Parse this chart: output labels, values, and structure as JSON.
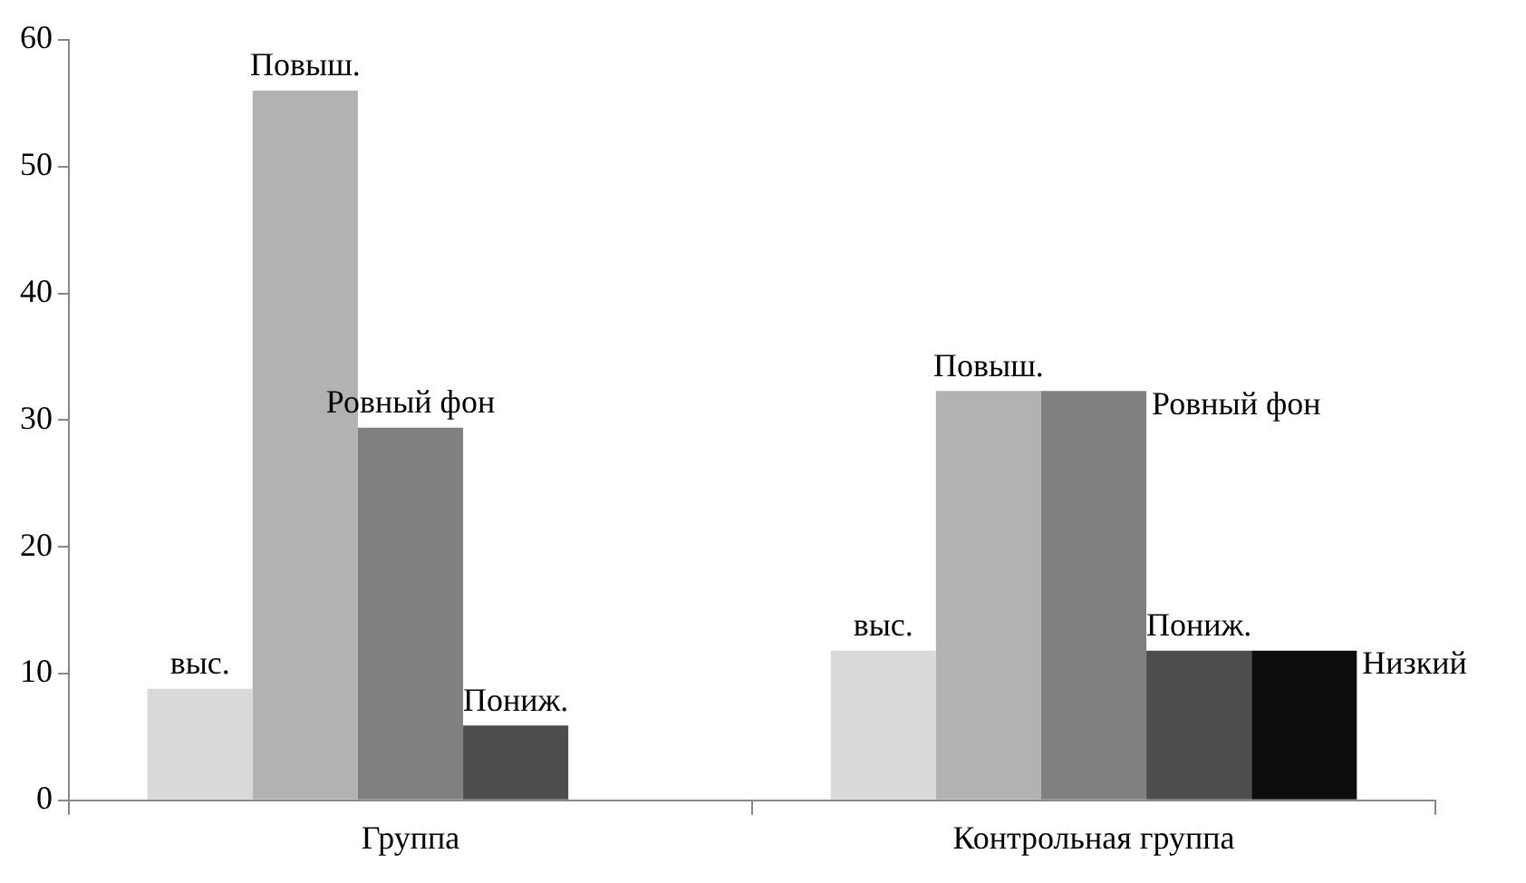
{
  "chart_data": {
    "type": "bar",
    "categories": [
      "Группа",
      "Контрольная группа"
    ],
    "series": [
      {
        "name": "выс.",
        "color": "#d9d9d9",
        "values": [
          8.8,
          11.8
        ]
      },
      {
        "name": "Повыш.",
        "color": "#b2b2b2",
        "values": [
          56,
          32.3
        ]
      },
      {
        "name": "Ровный фон",
        "color": "#808080",
        "values": [
          29.4,
          32.3
        ]
      },
      {
        "name": "Пониж.",
        "color": "#4d4d4d",
        "values": [
          5.9,
          11.8
        ]
      },
      {
        "name": "Низкий",
        "color": "#0d0d0d",
        "values": [
          null,
          11.8
        ]
      }
    ],
    "ylim": [
      0,
      60
    ],
    "yticks": [
      0,
      10,
      20,
      30,
      40,
      50,
      60
    ],
    "grid": false,
    "legend": false
  }
}
